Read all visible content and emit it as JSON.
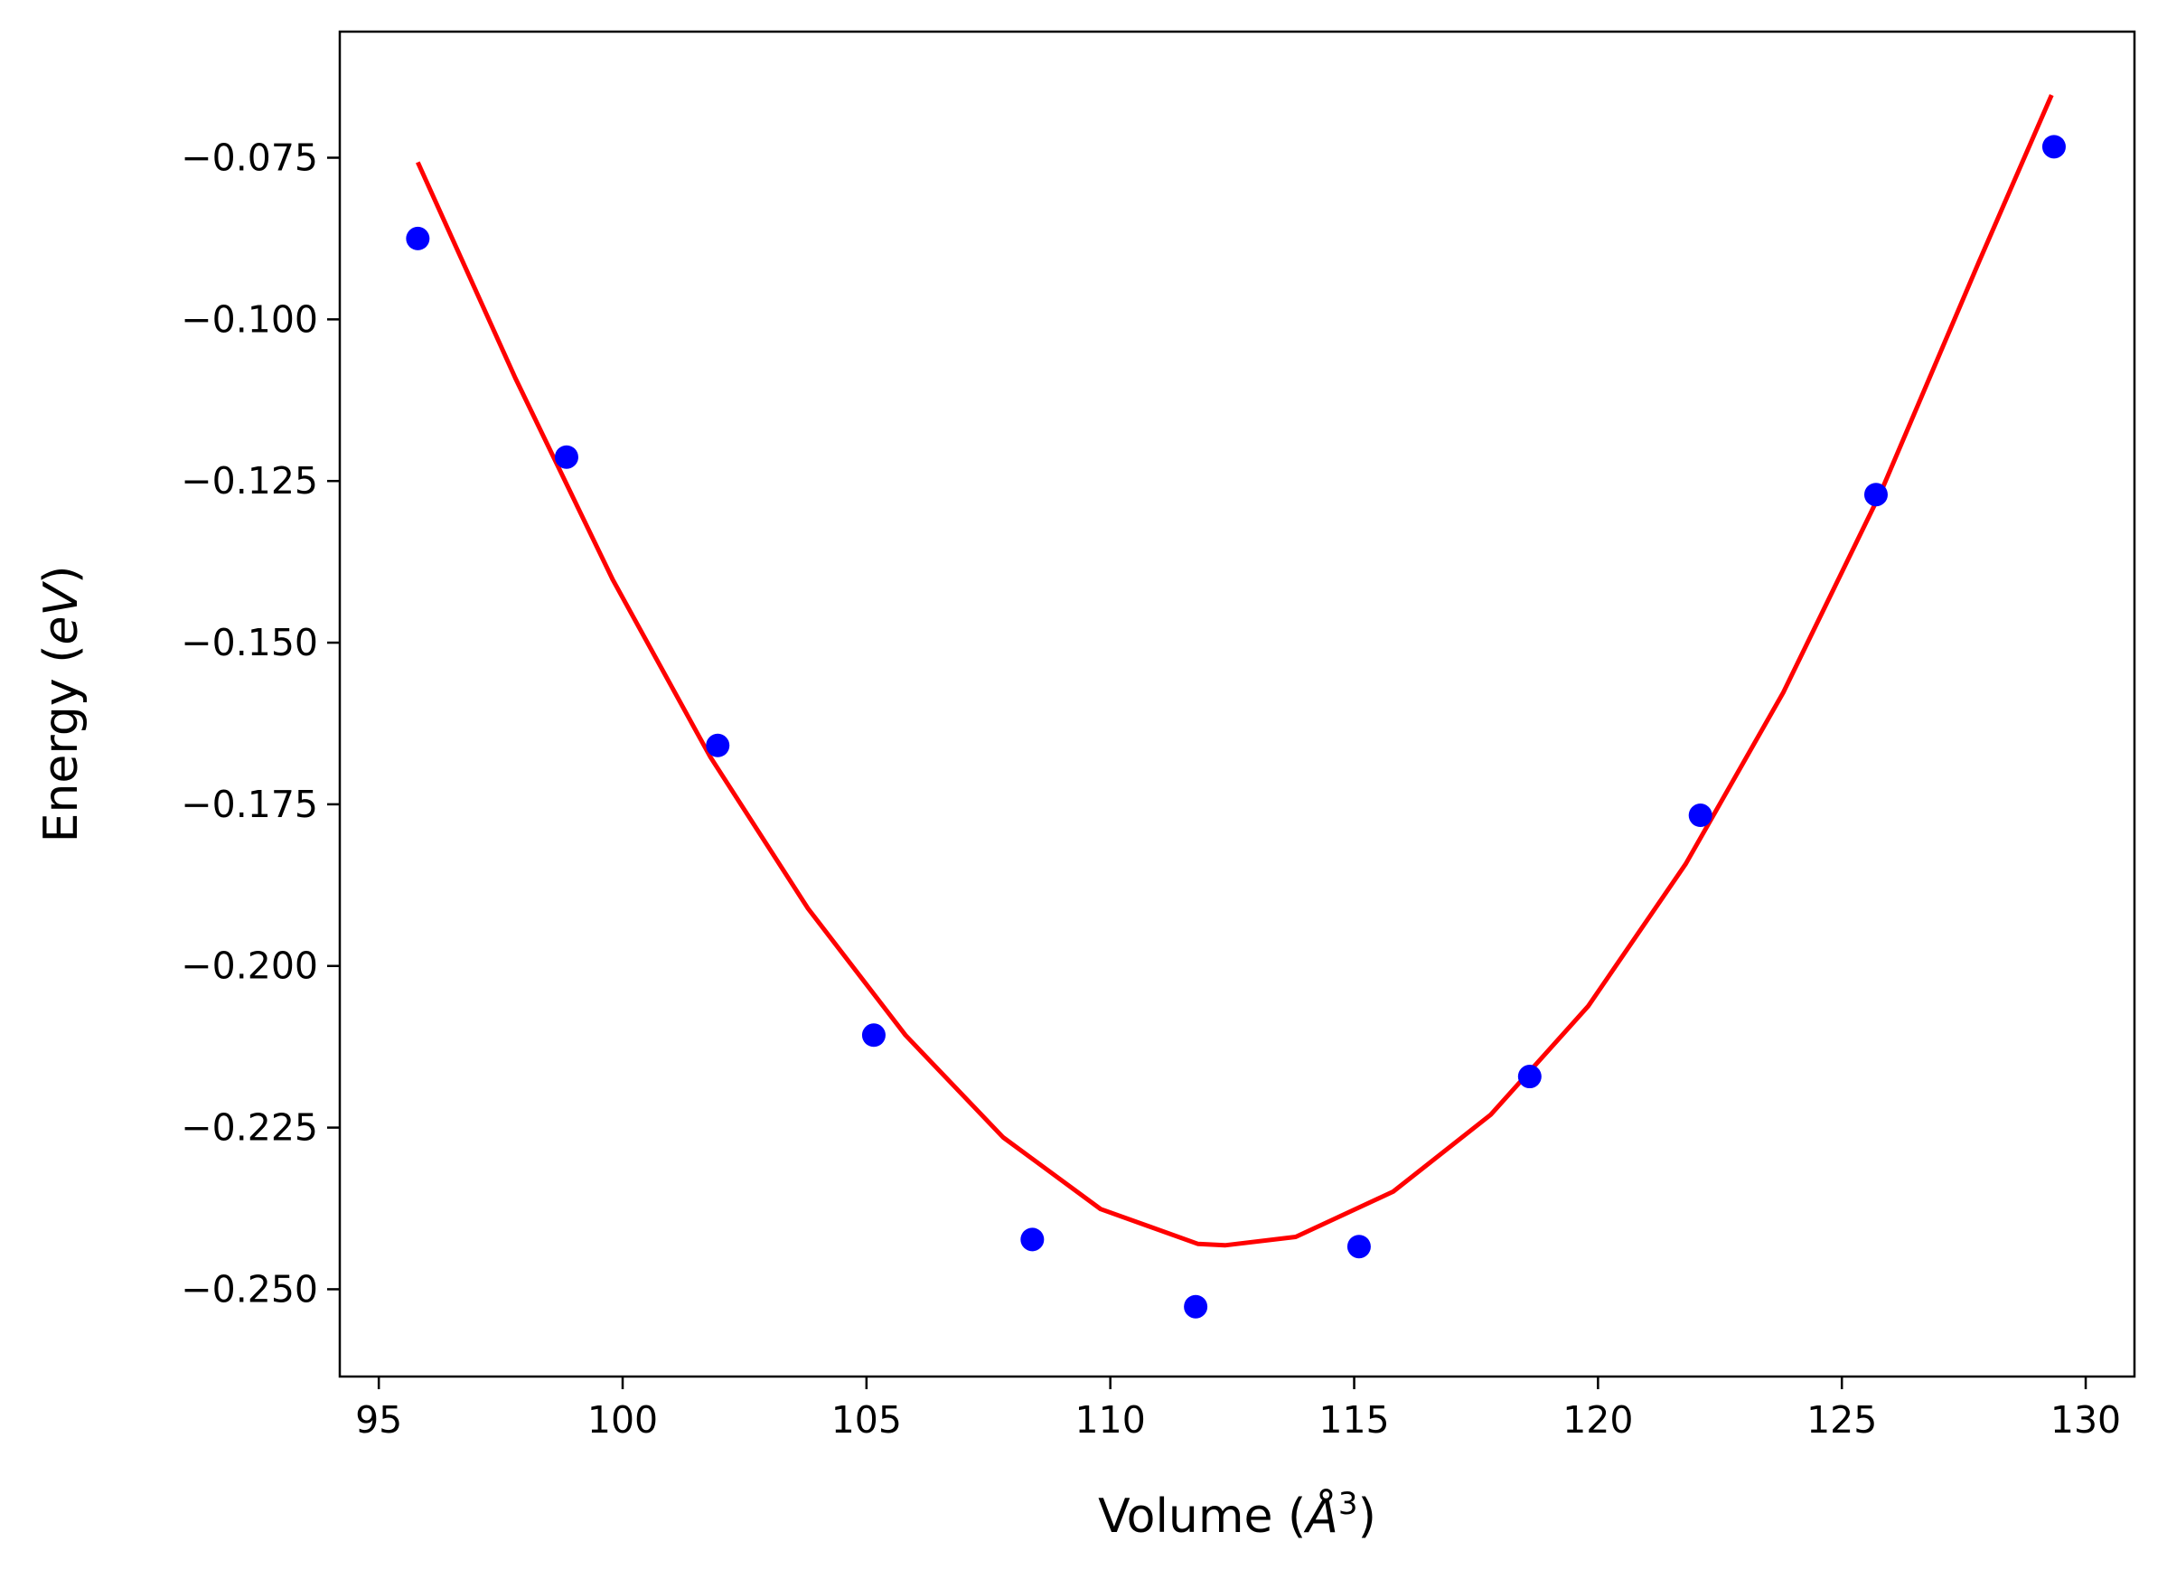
{
  "chart_data": {
    "type": "scatter",
    "title": "",
    "xlabel_parts": [
      "Volume (",
      "Å",
      "3",
      ")"
    ],
    "ylabel_parts": [
      "Energy (",
      "eV",
      ")"
    ],
    "xlim": [
      94.2,
      131.0
    ],
    "ylim": [
      -0.2635,
      -0.0555
    ],
    "xticks": [
      95,
      100,
      105,
      110,
      115,
      120,
      125,
      130
    ],
    "xtick_labels": [
      "95",
      "100",
      "105",
      "110",
      "115",
      "120",
      "125",
      "130"
    ],
    "yticks": [
      -0.075,
      -0.1,
      -0.125,
      -0.15,
      -0.175,
      -0.2,
      -0.225,
      -0.25
    ],
    "ytick_labels": [
      "−0.075",
      "−0.100",
      "−0.125",
      "−0.150",
      "−0.175",
      "−0.200",
      "−0.225",
      "−0.250"
    ],
    "grid": false,
    "legend": "none",
    "series": [
      {
        "kind": "scatter",
        "color": "#0000ff",
        "x": [
          95.8,
          98.85,
          101.95,
          105.15,
          108.4,
          111.75,
          115.1,
          118.6,
          122.1,
          125.7,
          129.35
        ],
        "y": [
          -0.0875,
          -0.1213,
          -0.1659,
          -0.2107,
          -0.2423,
          -0.2527,
          -0.2434,
          -0.2171,
          -0.1767,
          -0.1271,
          -0.0733
        ]
      },
      {
        "kind": "line",
        "color": "#ff0000",
        "x": [
          95.8,
          97.8,
          99.8,
          101.8,
          103.8,
          105.8,
          107.8,
          109.8,
          111.8,
          112.35,
          113.8,
          115.8,
          117.8,
          119.8,
          121.8,
          123.8,
          125.8,
          127.8,
          129.3
        ],
        "y": [
          -0.0757,
          -0.1091,
          -0.1403,
          -0.1677,
          -0.1911,
          -0.2107,
          -0.2265,
          -0.2376,
          -0.243,
          -0.2432,
          -0.2419,
          -0.2349,
          -0.223,
          -0.2062,
          -0.1842,
          -0.1577,
          -0.1267,
          -0.0913,
          -0.0653
        ]
      }
    ]
  }
}
